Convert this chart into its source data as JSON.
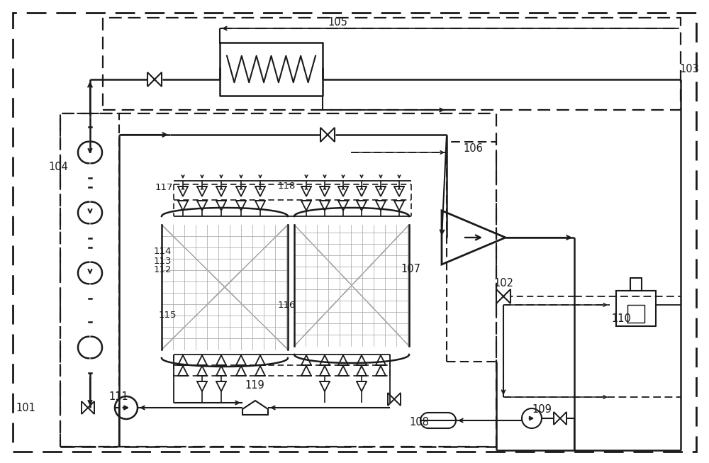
{
  "fig_width": 10.0,
  "fig_height": 6.53,
  "bg_color": "#ffffff",
  "lc": "#1a1a1a",
  "lw_main": 1.8,
  "lw_thin": 1.3,
  "lw_thick": 2.2
}
